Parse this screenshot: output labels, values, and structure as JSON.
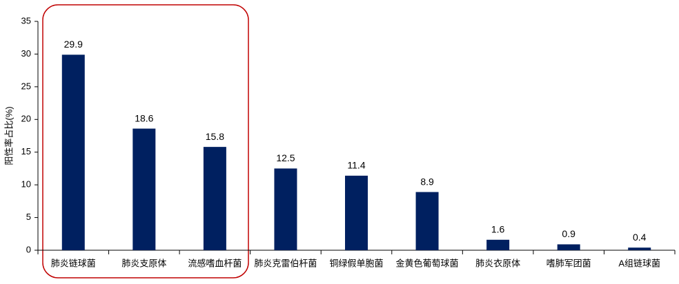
{
  "chart_data": {
    "type": "bar",
    "y_label": "阳性率占比(%)",
    "categories": [
      "肺炎链球菌",
      "肺炎支原体",
      "流感嗜血杆菌",
      "肺炎克雷伯杆菌",
      "铜绿假单胞菌",
      "金黄色葡萄球菌",
      "肺炎衣原体",
      "嗜肺军团菌",
      "A组链球菌"
    ],
    "values": [
      29.9,
      18.6,
      15.8,
      12.5,
      11.4,
      8.9,
      1.6,
      0.9,
      0.4
    ],
    "color": "#002060",
    "ylim": [
      0,
      35
    ],
    "yticks": [
      0,
      5,
      10,
      15,
      20,
      25,
      30,
      35
    ],
    "grid": false
  }
}
